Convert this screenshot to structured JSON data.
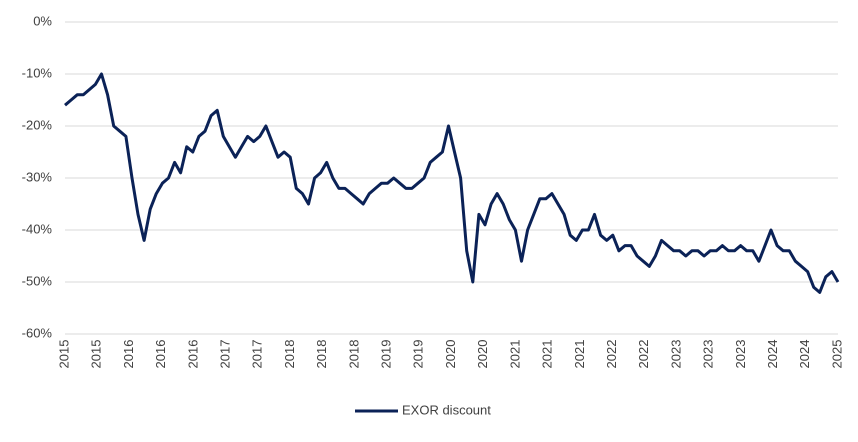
{
  "chart_data": {
    "type": "line",
    "xticks": [
      "2015",
      "2015",
      "2016",
      "2016",
      "2016",
      "2017",
      "2017",
      "2018",
      "2018",
      "2018",
      "2019",
      "2019",
      "2020",
      "2020",
      "2021",
      "2021",
      "2021",
      "2022",
      "2022",
      "2023",
      "2023",
      "2023",
      "2024",
      "2024",
      "2025"
    ],
    "ylim": [
      -60,
      0
    ],
    "yticks": [
      {
        "value": 0,
        "label": "0%"
      },
      {
        "value": -10,
        "label": "-10%"
      },
      {
        "value": -20,
        "label": "-20%"
      },
      {
        "value": -30,
        "label": "-30%"
      },
      {
        "value": -40,
        "label": "-40%"
      },
      {
        "value": -50,
        "label": "-50%"
      },
      {
        "value": -60,
        "label": "-60%"
      }
    ],
    "grid": true,
    "legend": "bottom",
    "series": [
      {
        "name": "EXOR discount",
        "color": "#0b2257",
        "values": [
          -16,
          -15,
          -14,
          -14,
          -13,
          -12,
          -10,
          -14,
          -20,
          -21,
          -22,
          -30,
          -37,
          -42,
          -36,
          -33,
          -31,
          -30,
          -27,
          -29,
          -24,
          -25,
          -22,
          -21,
          -18,
          -17,
          -22,
          -24,
          -26,
          -24,
          -22,
          -23,
          -22,
          -20,
          -23,
          -26,
          -25,
          -26,
          -32,
          -33,
          -35,
          -30,
          -29,
          -27,
          -30,
          -32,
          -32,
          -33,
          -34,
          -35,
          -33,
          -32,
          -31,
          -31,
          -30,
          -31,
          -32,
          -32,
          -31,
          -30,
          -27,
          -26,
          -25,
          -20,
          -25,
          -30,
          -44,
          -50,
          -37,
          -39,
          -35,
          -33,
          -35,
          -38,
          -40,
          -46,
          -40,
          -37,
          -34,
          -34,
          -33,
          -35,
          -37,
          -41,
          -42,
          -40,
          -40,
          -37,
          -41,
          -42,
          -41,
          -44,
          -43,
          -43,
          -45,
          -46,
          -47,
          -45,
          -42,
          -43,
          -44,
          -44,
          -45,
          -44,
          -44,
          -45,
          -44,
          -44,
          -43,
          -44,
          -44,
          -43,
          -44,
          -44,
          -46,
          -43,
          -40,
          -43,
          -44,
          -44,
          -46,
          -47,
          -48,
          -51,
          -52,
          -49,
          -48,
          -50
        ]
      }
    ]
  }
}
